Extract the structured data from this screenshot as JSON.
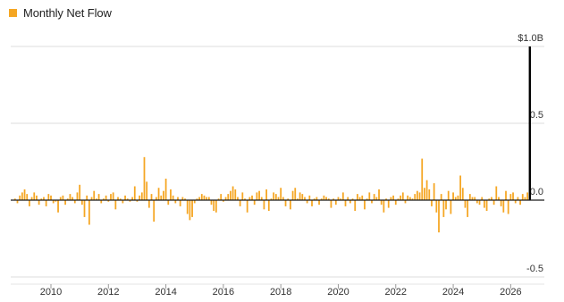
{
  "chart_data": {
    "type": "bar",
    "legend": [
      {
        "name": "Monthly Net Flow",
        "color": "#f5a623"
      }
    ],
    "colors": {
      "bars": "#f5a623",
      "last_bar": "#000000",
      "zero_line": "#1a1a1a",
      "grid": "#dcdcdc"
    },
    "y_ticks": [
      {
        "value": 1.0,
        "label": "$1.0B"
      },
      {
        "value": 0.5,
        "label": "0.5"
      },
      {
        "value": 0.0,
        "label": "0.0"
      },
      {
        "value": -0.5,
        "label": "-0.5"
      }
    ],
    "x_ticks": [
      "2010",
      "2012",
      "2014",
      "2016",
      "2018",
      "2020",
      "2022",
      "2024",
      "2026"
    ],
    "ylim": [
      -0.5,
      1.0
    ],
    "xlim": [
      2008.6,
      2026.3
    ],
    "grid": true,
    "legend_position": "top-left",
    "series": [
      {
        "name": "Monthly Net Flow",
        "start": 2008.75,
        "step_months": 1,
        "values": [
          0.01,
          -0.02,
          0.03,
          0.05,
          0.07,
          0.04,
          -0.04,
          0.02,
          0.05,
          0.03,
          -0.03,
          0.01,
          0.02,
          -0.04,
          0.04,
          0.03,
          -0.02,
          -0.01,
          -0.08,
          0.02,
          0.03,
          -0.03,
          0.01,
          0.04,
          0.02,
          -0.02,
          0.05,
          0.1,
          -0.03,
          -0.11,
          0.03,
          -0.16,
          0.02,
          0.06,
          0.01,
          0.04,
          -0.02,
          0.01,
          0.03,
          -0.01,
          0.04,
          0.05,
          -0.06,
          0.02,
          0.01,
          -0.02,
          0.03,
          0.01,
          -0.01,
          0.02,
          0.09,
          -0.01,
          0.03,
          0.05,
          0.28,
          0.12,
          -0.05,
          0.04,
          -0.14,
          0.02,
          0.08,
          0.03,
          0.06,
          0.14,
          -0.03,
          0.07,
          0.03,
          -0.02,
          0.02,
          -0.04,
          0.02,
          0.01,
          -0.09,
          -0.13,
          -0.11,
          -0.02,
          0.01,
          0.02,
          0.04,
          0.03,
          0.02,
          0.02,
          -0.03,
          -0.07,
          -0.08,
          0.01,
          0.04,
          -0.01,
          0.02,
          0.04,
          0.06,
          0.09,
          0.07,
          0.02,
          -0.04,
          0.05,
          0.01,
          -0.08,
          0.02,
          0.03,
          -0.03,
          0.05,
          0.06,
          0.02,
          -0.06,
          0.07,
          -0.07,
          0.01,
          0.05,
          0.04,
          0.02,
          0.08,
          0.02,
          -0.04,
          0.01,
          -0.06,
          0.06,
          0.08,
          0.01,
          0.05,
          0.04,
          0.02,
          -0.02,
          0.03,
          -0.04,
          0.01,
          0.02,
          -0.03,
          0.01,
          0.03,
          0.02,
          0.01,
          -0.05,
          0.01,
          -0.03,
          0.02,
          0.01,
          0.05,
          -0.04,
          0.02,
          -0.02,
          0.01,
          -0.07,
          0.04,
          0.02,
          0.03,
          -0.06,
          0.01,
          0.05,
          -0.02,
          0.04,
          0.02,
          0.07,
          -0.03,
          -0.08,
          0.01,
          -0.05,
          0.02,
          0.03,
          -0.03,
          0.01,
          0.03,
          0.05,
          -0.02,
          0.03,
          0.02,
          0.01,
          0.04,
          0.06,
          0.05,
          0.27,
          0.08,
          0.13,
          0.07,
          -0.04,
          0.11,
          -0.08,
          -0.21,
          0.04,
          -0.11,
          -0.06,
          0.06,
          -0.09,
          0.05,
          0.02,
          0.03,
          0.16,
          0.08,
          -0.05,
          -0.11,
          0.04,
          0.02,
          0.02,
          -0.02,
          -0.03,
          0.02,
          -0.05,
          -0.07,
          0.01,
          0.02,
          -0.03,
          0.09,
          0.02,
          -0.04,
          -0.08,
          0.06,
          -0.09,
          0.04,
          0.05,
          -0.02,
          0.02,
          -0.03,
          0.04,
          0.02,
          0.05,
          1.0
        ]
      }
    ],
    "last_bar_highlight": true
  }
}
